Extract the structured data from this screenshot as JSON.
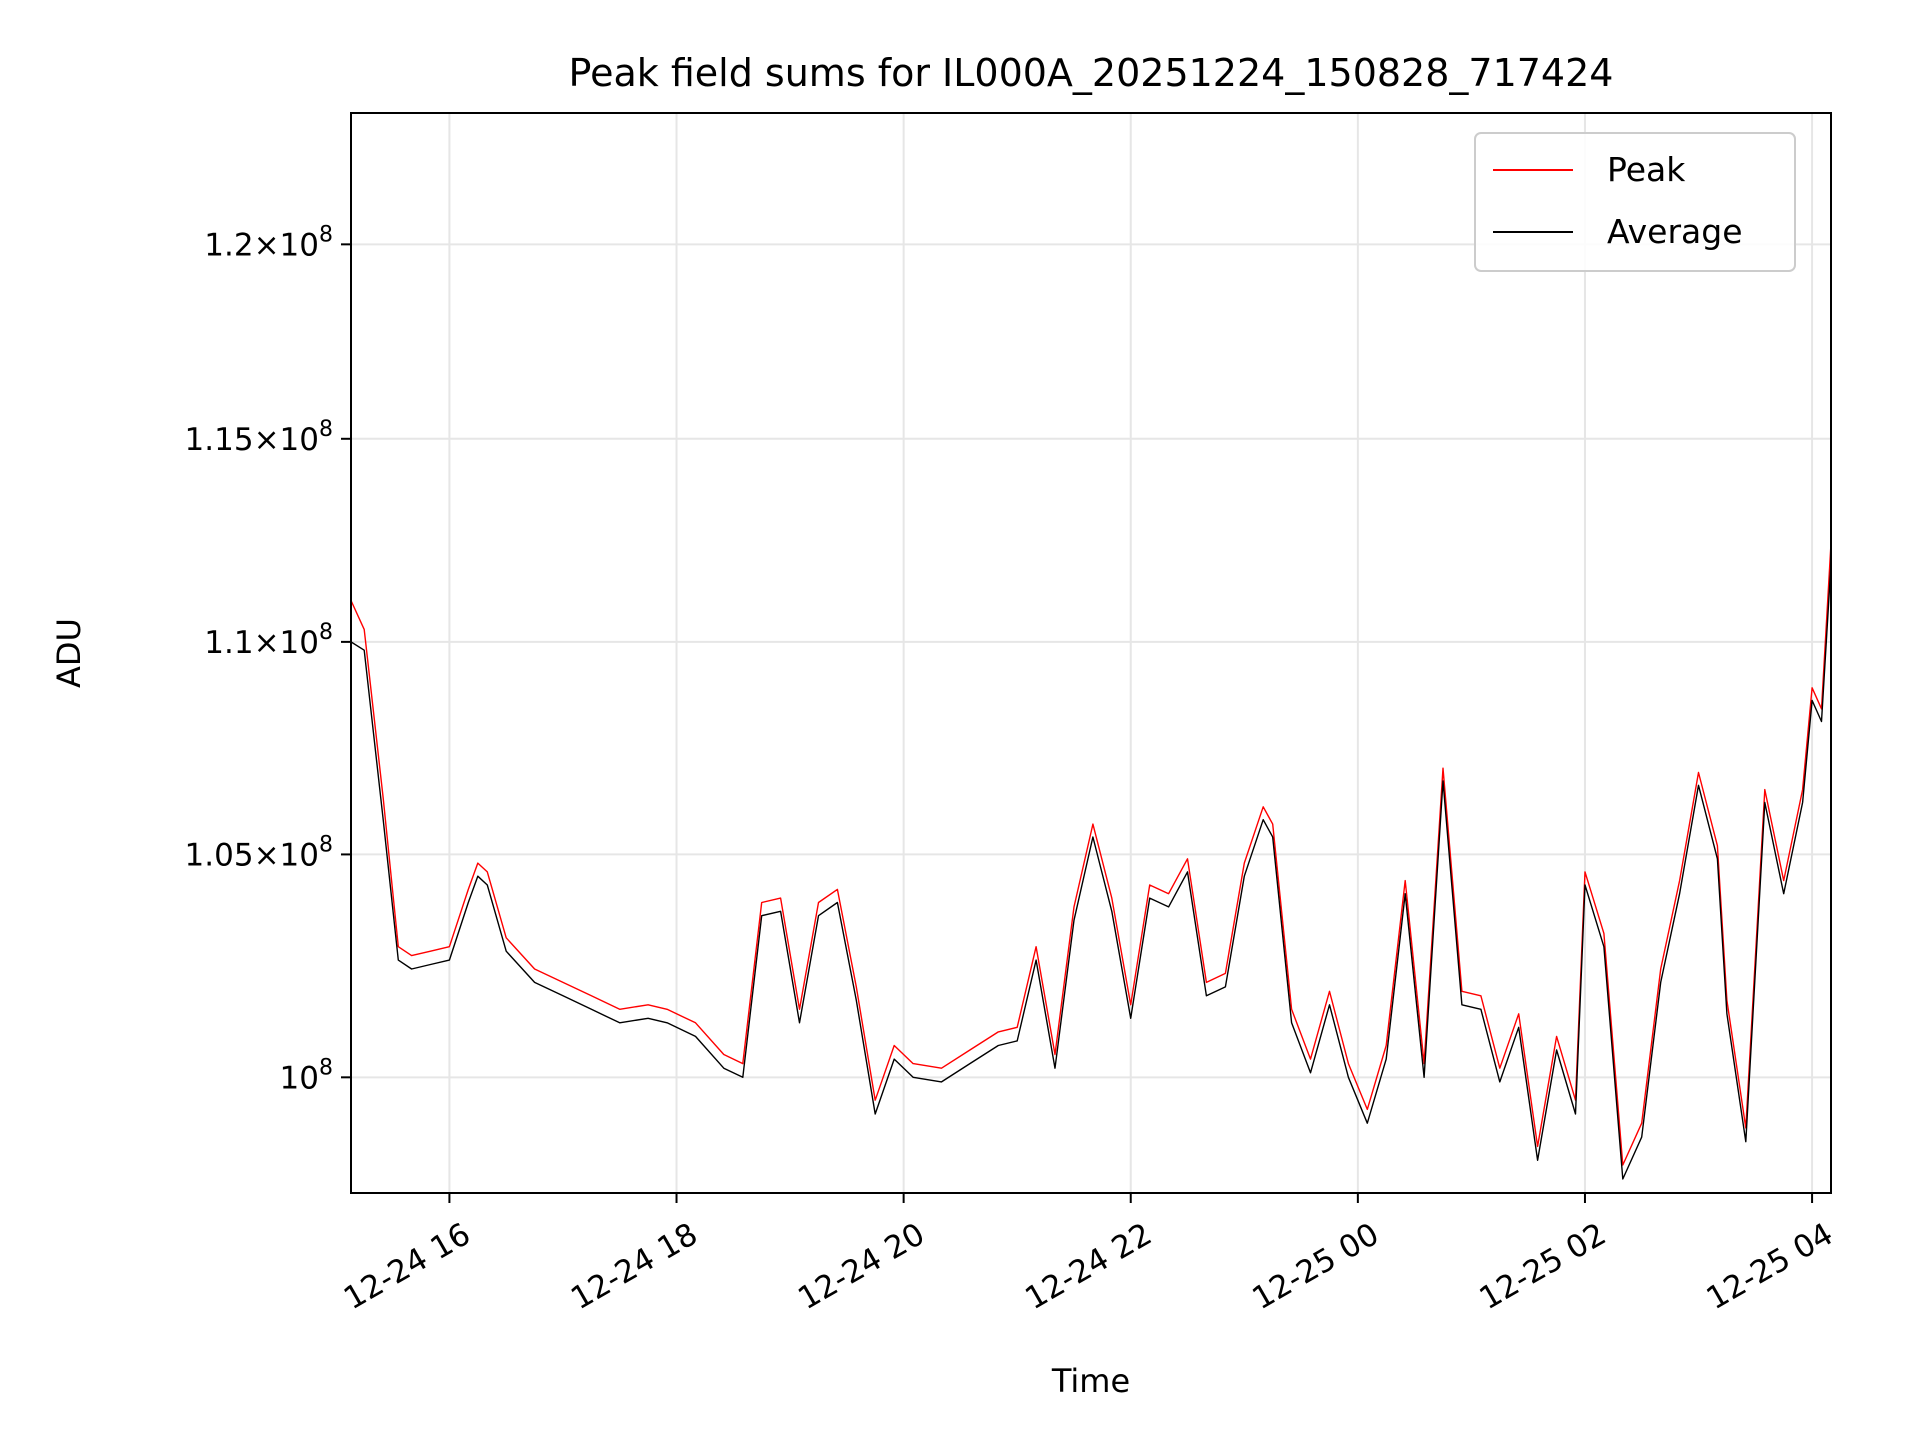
{
  "chart_data": {
    "type": "line",
    "title": "Peak field sums for IL000A_20251224_150828_717424",
    "xlabel": "Time",
    "ylabel": "ADU",
    "y_scale": "log",
    "grid": true,
    "legend_position": "top-right",
    "x_range": [
      "2025-12-24 15:08",
      "2025-12-25 04:10"
    ],
    "y_range": [
      97500000,
      123500000
    ],
    "x_ticks": [
      {
        "t": "2025-12-24 16:00",
        "label": "12-24 16"
      },
      {
        "t": "2025-12-24 18:00",
        "label": "12-24 18"
      },
      {
        "t": "2025-12-24 20:00",
        "label": "12-24 20"
      },
      {
        "t": "2025-12-24 22:00",
        "label": "12-24 22"
      },
      {
        "t": "2025-12-25 00:00",
        "label": "12-25 00"
      },
      {
        "t": "2025-12-25 02:00",
        "label": "12-25 02"
      },
      {
        "t": "2025-12-25 04:00",
        "label": "12-25 04"
      }
    ],
    "y_ticks": [
      {
        "value": 100000000,
        "mantissa": "",
        "exponent": "8"
      },
      {
        "value": 105000000,
        "mantissa": "1.05",
        "exponent": "8"
      },
      {
        "value": 110000000,
        "mantissa": "1.1",
        "exponent": "8"
      },
      {
        "value": 115000000,
        "mantissa": "1.15",
        "exponent": "8"
      },
      {
        "value": 120000000,
        "mantissa": "1.2",
        "exponent": "8"
      }
    ],
    "series": [
      {
        "name": "Peak",
        "color": "#ff0000",
        "x": [
          "2025-12-24 15:08",
          "2025-12-24 15:15",
          "2025-12-24 15:25",
          "2025-12-24 15:33",
          "2025-12-24 15:40",
          "2025-12-24 15:50",
          "2025-12-24 16:00",
          "2025-12-24 16:10",
          "2025-12-24 16:15",
          "2025-12-24 16:20",
          "2025-12-24 16:30",
          "2025-12-24 16:45",
          "2025-12-24 17:00",
          "2025-12-24 17:15",
          "2025-12-24 17:30",
          "2025-12-24 17:45",
          "2025-12-24 17:55",
          "2025-12-24 18:10",
          "2025-12-24 18:25",
          "2025-12-24 18:35",
          "2025-12-24 18:45",
          "2025-12-24 18:55",
          "2025-12-24 19:05",
          "2025-12-24 19:15",
          "2025-12-24 19:25",
          "2025-12-24 19:35",
          "2025-12-24 19:45",
          "2025-12-24 19:55",
          "2025-12-24 20:05",
          "2025-12-24 20:20",
          "2025-12-24 20:35",
          "2025-12-24 20:50",
          "2025-12-24 21:00",
          "2025-12-24 21:10",
          "2025-12-24 21:20",
          "2025-12-24 21:30",
          "2025-12-24 21:40",
          "2025-12-24 21:50",
          "2025-12-24 22:00",
          "2025-12-24 22:10",
          "2025-12-24 22:20",
          "2025-12-24 22:30",
          "2025-12-24 22:40",
          "2025-12-24 22:50",
          "2025-12-24 23:00",
          "2025-12-24 23:10",
          "2025-12-24 23:15",
          "2025-12-24 23:25",
          "2025-12-24 23:35",
          "2025-12-24 23:45",
          "2025-12-24 23:55",
          "2025-12-25 00:05",
          "2025-12-25 00:15",
          "2025-12-25 00:25",
          "2025-12-25 00:35",
          "2025-12-25 00:45",
          "2025-12-25 00:55",
          "2025-12-25 01:05",
          "2025-12-25 01:15",
          "2025-12-25 01:25",
          "2025-12-25 01:35",
          "2025-12-25 01:45",
          "2025-12-25 01:55",
          "2025-12-25 02:00",
          "2025-12-25 02:10",
          "2025-12-25 02:20",
          "2025-12-25 02:30",
          "2025-12-25 02:40",
          "2025-12-25 02:50",
          "2025-12-25 03:00",
          "2025-12-25 03:10",
          "2025-12-25 03:15",
          "2025-12-25 03:25",
          "2025-12-25 03:35",
          "2025-12-25 03:45",
          "2025-12-25 03:55",
          "2025-12-25 04:00",
          "2025-12-25 04:05",
          "2025-12-25 04:10"
        ],
        "values": [
          111000000,
          110300000,
          106300000,
          102900000,
          102700000,
          102800000,
          102900000,
          104200000,
          104800000,
          104600000,
          103100000,
          102400000,
          102100000,
          101800000,
          101500000,
          101600000,
          101500000,
          101200000,
          100500000,
          100300000,
          103900000,
          104000000,
          101500000,
          103900000,
          104200000,
          102000000,
          99500000,
          100700000,
          100300000,
          100200000,
          100600000,
          101000000,
          101100000,
          102900000,
          100500000,
          103800000,
          105700000,
          104000000,
          101600000,
          104300000,
          104100000,
          104900000,
          102100000,
          102300000,
          104800000,
          106100000,
          105700000,
          101500000,
          100400000,
          101900000,
          100300000,
          99300000,
          100700000,
          104400000,
          100300000,
          107000000,
          101900000,
          101800000,
          100200000,
          101400000,
          98500000,
          100900000,
          99500000,
          104600000,
          103200000,
          98100000,
          99000000,
          102400000,
          104400000,
          106900000,
          105200000,
          101700000,
          98900000,
          106500000,
          104400000,
          106500000,
          108900000,
          108400000,
          112400000
        ]
      },
      {
        "name": "Average",
        "color": "#000000",
        "x": [
          "2025-12-24 15:08",
          "2025-12-24 15:15",
          "2025-12-24 15:25",
          "2025-12-24 15:33",
          "2025-12-24 15:40",
          "2025-12-24 15:50",
          "2025-12-24 16:00",
          "2025-12-24 16:10",
          "2025-12-24 16:15",
          "2025-12-24 16:20",
          "2025-12-24 16:30",
          "2025-12-24 16:45",
          "2025-12-24 17:00",
          "2025-12-24 17:15",
          "2025-12-24 17:30",
          "2025-12-24 17:45",
          "2025-12-24 17:55",
          "2025-12-24 18:10",
          "2025-12-24 18:25",
          "2025-12-24 18:35",
          "2025-12-24 18:45",
          "2025-12-24 18:55",
          "2025-12-24 19:05",
          "2025-12-24 19:15",
          "2025-12-24 19:25",
          "2025-12-24 19:35",
          "2025-12-24 19:45",
          "2025-12-24 19:55",
          "2025-12-24 20:05",
          "2025-12-24 20:20",
          "2025-12-24 20:35",
          "2025-12-24 20:50",
          "2025-12-24 21:00",
          "2025-12-24 21:10",
          "2025-12-24 21:20",
          "2025-12-24 21:30",
          "2025-12-24 21:40",
          "2025-12-24 21:50",
          "2025-12-24 22:00",
          "2025-12-24 22:10",
          "2025-12-24 22:20",
          "2025-12-24 22:30",
          "2025-12-24 22:40",
          "2025-12-24 22:50",
          "2025-12-24 23:00",
          "2025-12-24 23:10",
          "2025-12-24 23:15",
          "2025-12-24 23:25",
          "2025-12-24 23:35",
          "2025-12-24 23:45",
          "2025-12-24 23:55",
          "2025-12-25 00:05",
          "2025-12-25 00:15",
          "2025-12-25 00:25",
          "2025-12-25 00:35",
          "2025-12-25 00:45",
          "2025-12-25 00:55",
          "2025-12-25 01:05",
          "2025-12-25 01:15",
          "2025-12-25 01:25",
          "2025-12-25 01:35",
          "2025-12-25 01:45",
          "2025-12-25 01:55",
          "2025-12-25 02:00",
          "2025-12-25 02:10",
          "2025-12-25 02:20",
          "2025-12-25 02:30",
          "2025-12-25 02:40",
          "2025-12-25 02:50",
          "2025-12-25 03:00",
          "2025-12-25 03:10",
          "2025-12-25 03:15",
          "2025-12-25 03:25",
          "2025-12-25 03:35",
          "2025-12-25 03:45",
          "2025-12-25 03:55",
          "2025-12-25 04:00",
          "2025-12-25 04:05",
          "2025-12-25 04:10"
        ],
        "values": [
          110000000,
          109800000,
          105800000,
          102600000,
          102400000,
          102500000,
          102600000,
          103900000,
          104500000,
          104300000,
          102800000,
          102100000,
          101800000,
          101500000,
          101200000,
          101300000,
          101200000,
          100900000,
          100200000,
          100000000,
          103600000,
          103700000,
          101200000,
          103600000,
          103900000,
          101700000,
          99200000,
          100400000,
          100000000,
          99900000,
          100300000,
          100700000,
          100800000,
          102600000,
          100200000,
          103500000,
          105400000,
          103700000,
          101300000,
          104000000,
          103800000,
          104600000,
          101800000,
          102000000,
          104500000,
          105800000,
          105400000,
          101200000,
          100100000,
          101600000,
          100000000,
          99000000,
          100400000,
          104100000,
          100000000,
          106700000,
          101600000,
          101500000,
          99900000,
          101100000,
          98200000,
          100600000,
          99200000,
          104300000,
          102900000,
          97800000,
          98700000,
          102100000,
          104100000,
          106600000,
          104900000,
          101400000,
          98600000,
          106200000,
          104100000,
          106200000,
          108600000,
          108100000,
          111900000
        ]
      }
    ]
  }
}
